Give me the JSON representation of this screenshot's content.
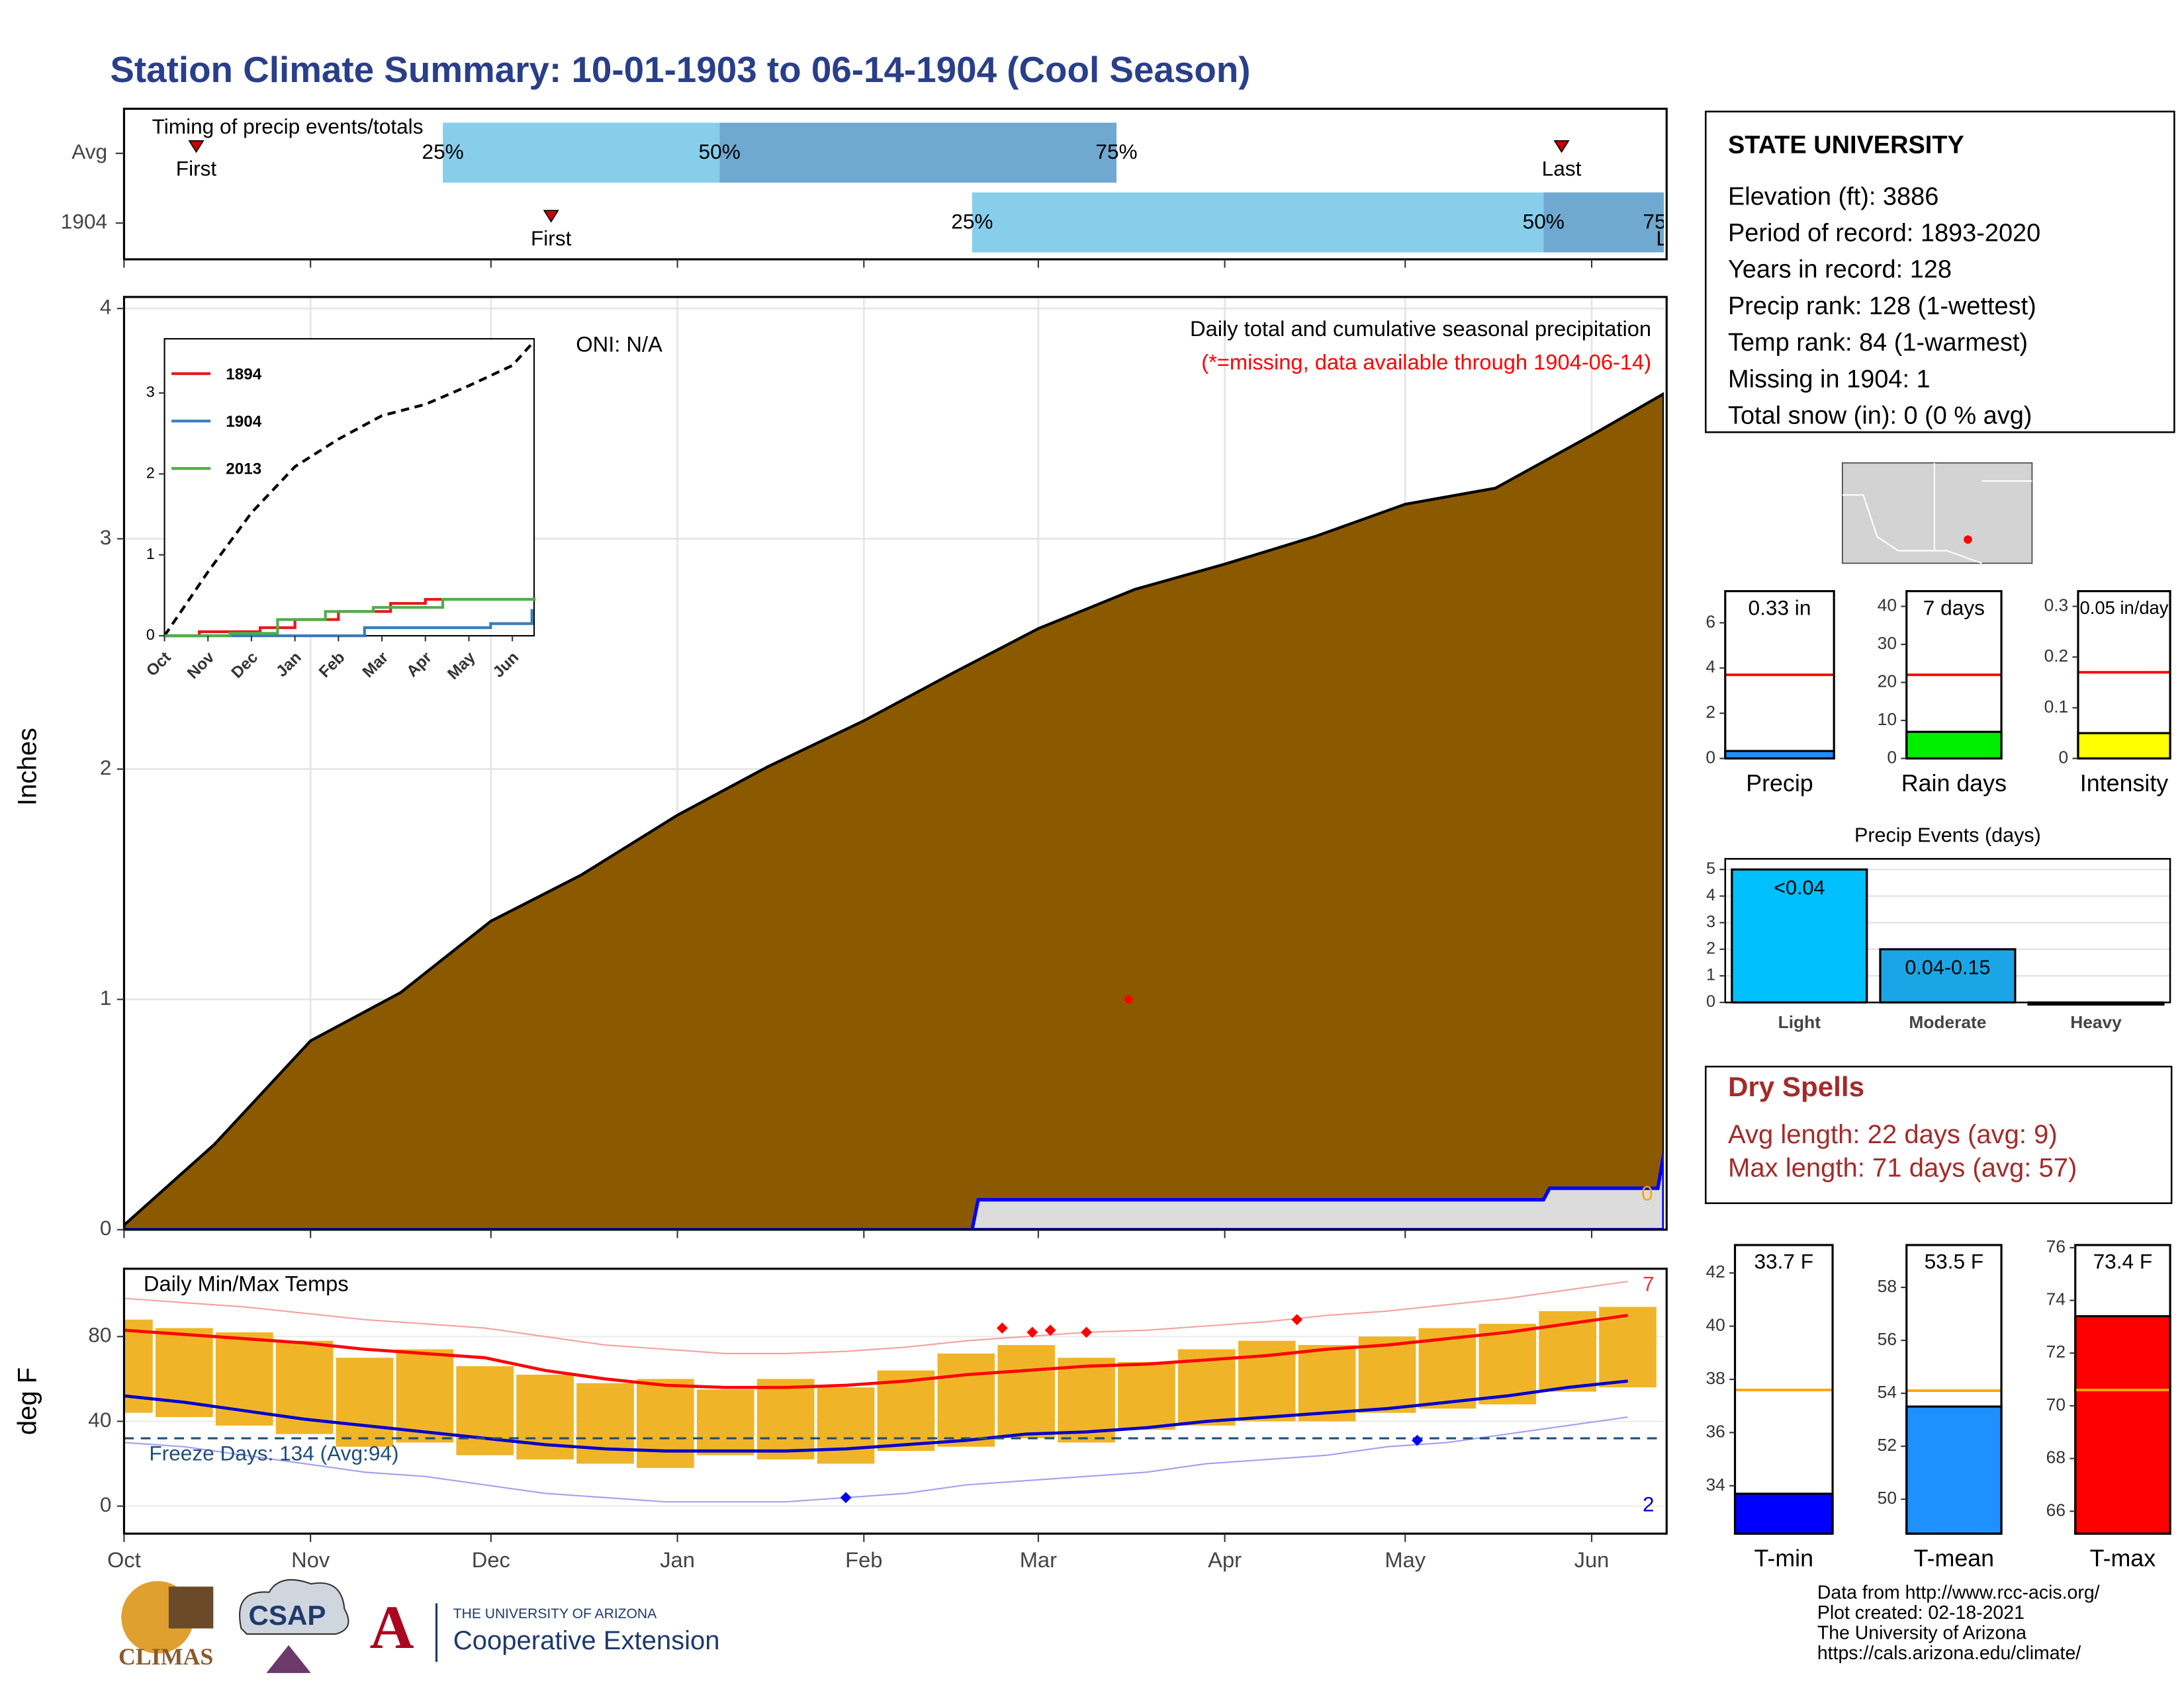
{
  "title": "Station Climate Summary: 10-01-1903 to 06-14-1904 (Cool Season)",
  "station": {
    "name": "STATE UNIVERSITY",
    "lines": [
      "Elevation (ft): 3886",
      "Period of record: 1893-2020",
      "Years in record: 128",
      "Precip rank: 128 (1-wettest)",
      "Temp rank: 84 (1-warmest)",
      "Missing in 1904: 1",
      "Total snow (in): 0 (0 % avg)"
    ]
  },
  "dry_spells": {
    "title": "Dry Spells",
    "lines": [
      "Avg length: 22 days (avg: 9)",
      "Max length: 71 days (avg: 57)"
    ]
  },
  "credits": [
    "Data from http://www.rcc-acis.org/",
    "Plot created: 02-18-2021",
    "The University of Arizona",
    "https://cals.arizona.edu/climate/"
  ],
  "logos": [
    "CLIMAS",
    "CSAP",
    "THE UNIVERSITY OF ARIZONA",
    "Cooperative Extension"
  ],
  "chart_data": [
    {
      "type": "timing",
      "title": "Timing of precip events/totals",
      "categories": [
        "Avg",
        "1904"
      ],
      "marker_labels": {
        "first": "First",
        "last": "Last",
        "q25": "25%",
        "q50": "50%",
        "q75": "75%"
      },
      "first": [
        12,
        71
      ],
      "last": [
        239,
        258
      ],
      "q25": [
        53,
        141
      ],
      "q50": [
        99,
        236
      ],
      "q75": [
        165,
        256
      ],
      "xlim": [
        0,
        256
      ],
      "colors": [
        "#87ceeb",
        "#6fa8d0"
      ]
    },
    {
      "type": "area",
      "title": "Daily total and cumulative seasonal precipitation",
      "note": "(*=missing, data available through 1904-06-14)",
      "annotation": "ONI: N/A",
      "ylabel": "Inches",
      "right_label": "0",
      "x": [
        0,
        15,
        31,
        46,
        61,
        76,
        92,
        107,
        123,
        138,
        152,
        168,
        183,
        198,
        213,
        228,
        244,
        256
      ],
      "values": [
        0.02,
        0.37,
        0.82,
        1.03,
        1.34,
        1.54,
        1.8,
        2.01,
        2.21,
        2.42,
        2.61,
        2.78,
        2.89,
        3.01,
        3.15,
        3.22,
        3.45,
        3.63
      ],
      "color": "#8b5a00",
      "series": [
        {
          "color": "#0000ff",
          "x": [
            0,
            141,
            142,
            236,
            237,
            255,
            256
          ],
          "values": [
            0,
            0,
            0.13,
            0.13,
            0.18,
            0.18,
            0.33
          ]
        }
      ],
      "missing": {
        "x": 167,
        "y": 1
      },
      "xlim": [
        0,
        256
      ],
      "ylim": [
        0,
        4.05
      ],
      "yticks": [
        0,
        1,
        2,
        3,
        4
      ],
      "grid": true
    },
    {
      "type": "line",
      "xlim": [
        0,
        8.5
      ],
      "ylim": [
        0,
        3.67
      ],
      "yticks": [
        0,
        1,
        2,
        3
      ],
      "xticks": [
        {
          "value": 0,
          "label": "Oct"
        },
        {
          "value": 1,
          "label": "Nov"
        },
        {
          "value": 2,
          "label": "Dec"
        },
        {
          "value": 3,
          "label": "Jan"
        },
        {
          "value": 4,
          "label": "Feb"
        },
        {
          "value": 5,
          "label": "Mar"
        },
        {
          "value": 6,
          "label": "Apr"
        },
        {
          "value": 7,
          "label": "May"
        },
        {
          "value": 8,
          "label": "Jun"
        }
      ],
      "series": [
        {
          "color": "#000000",
          "dash": true,
          "x": [
            0,
            1,
            2,
            3,
            4,
            5,
            6,
            7,
            8,
            8.5
          ],
          "values": [
            0,
            0.79,
            1.52,
            2.09,
            2.43,
            2.72,
            2.86,
            3.09,
            3.34,
            3.64
          ]
        },
        {
          "name": "1894",
          "color": "#e41a1c",
          "step": true,
          "x": [
            0,
            0.8,
            2.2,
            3,
            4,
            5.2,
            6,
            8.5
          ],
          "values": [
            0,
            0.05,
            0.1,
            0.2,
            0.3,
            0.4,
            0.45,
            0.47
          ]
        },
        {
          "name": "1904",
          "color": "#377eb8",
          "step": true,
          "x": [
            0,
            4.6,
            7.5,
            8.45
          ],
          "values": [
            0,
            0.1,
            0.15,
            0.33
          ]
        },
        {
          "name": "2013",
          "color": "#4daf4a",
          "step": true,
          "x": [
            0,
            1.5,
            2.6,
            3.7,
            4.8,
            6.4,
            8.5
          ],
          "values": [
            0,
            0.03,
            0.2,
            0.3,
            0.35,
            0.45,
            0.47
          ]
        }
      ]
    },
    {
      "type": "temps",
      "title": "Daily Min/Max Temps",
      "ylabel": "deg F",
      "freeze": 32,
      "freeze_label": "Freeze Days: 134 (Avg:94)",
      "corner_labels": [
        "7",
        "2"
      ],
      "xlim": [
        0,
        256
      ],
      "ylim": [
        -13,
        112
      ],
      "yticks": [
        0,
        40,
        80
      ],
      "xticks": [
        {
          "value": 0,
          "label": "Oct"
        },
        {
          "value": 31,
          "label": "Nov"
        },
        {
          "value": 61,
          "label": "Dec"
        },
        {
          "value": 92,
          "label": "Jan"
        },
        {
          "value": 123,
          "label": "Feb"
        },
        {
          "value": 152,
          "label": "Mar"
        },
        {
          "value": 183,
          "label": "Apr"
        },
        {
          "value": 213,
          "label": "May"
        },
        {
          "value": 244,
          "label": "Jun"
        }
      ],
      "x": [
        0,
        10,
        20,
        30,
        40,
        50,
        60,
        70,
        80,
        90,
        100,
        110,
        120,
        130,
        140,
        150,
        160,
        170,
        180,
        190,
        200,
        210,
        220,
        230,
        240,
        250
      ],
      "max": [
        88,
        84,
        82,
        78,
        70,
        74,
        66,
        62,
        58,
        60,
        55,
        60,
        56,
        64,
        72,
        76,
        70,
        68,
        74,
        78,
        76,
        80,
        84,
        86,
        92,
        94
      ],
      "min": [
        44,
        42,
        38,
        34,
        28,
        30,
        24,
        22,
        20,
        18,
        24,
        22,
        20,
        26,
        28,
        32,
        30,
        36,
        38,
        40,
        40,
        44,
        46,
        48,
        54,
        56
      ],
      "avg_max": [
        83,
        81,
        79,
        77,
        74,
        72,
        70,
        64,
        60,
        57,
        56,
        56,
        57,
        59,
        62,
        64,
        66,
        67,
        69,
        71,
        74,
        76,
        79,
        82,
        86,
        90
      ],
      "avg_min": [
        52,
        49,
        45,
        41,
        38,
        35,
        32,
        29,
        27,
        26,
        26,
        26,
        27,
        29,
        31,
        34,
        35,
        37,
        40,
        42,
        44,
        46,
        49,
        52,
        56,
        59
      ],
      "record_max": [
        98,
        96,
        94,
        91,
        88,
        86,
        84,
        80,
        76,
        74,
        72,
        72,
        73,
        75,
        78,
        80,
        82,
        83,
        85,
        87,
        90,
        92,
        95,
        98,
        102,
        106
      ],
      "record_min": [
        30,
        28,
        24,
        20,
        16,
        14,
        10,
        6,
        4,
        2,
        2,
        2,
        4,
        6,
        10,
        12,
        14,
        16,
        20,
        22,
        24,
        28,
        30,
        34,
        38,
        42
      ],
      "record_highs": {
        "x": [
          146,
          151,
          154,
          160,
          195
        ],
        "y": [
          84,
          82,
          83,
          82,
          88
        ]
      },
      "record_lows": {
        "x": [
          120,
          215
        ],
        "y": [
          4,
          31
        ]
      }
    },
    {
      "type": "bar",
      "categories": [
        "Precip"
      ],
      "values": [
        0.33
      ],
      "value_labels": [
        "0.33 in"
      ],
      "color": "#1e90ff",
      "reference": 3.7,
      "reference_color": "#ff0000",
      "ylim": [
        0,
        7.4
      ],
      "yticks": [
        0,
        2,
        4,
        6
      ]
    },
    {
      "type": "bar",
      "categories": [
        "Rain days"
      ],
      "values": [
        7
      ],
      "value_labels": [
        "7 days"
      ],
      "color": "#00ee00",
      "reference": 22,
      "reference_color": "#ff0000",
      "ylim": [
        0,
        44
      ],
      "yticks": [
        0,
        10,
        20,
        30,
        40
      ]
    },
    {
      "type": "bar",
      "categories": [
        "Intensity"
      ],
      "values": [
        0.05
      ],
      "value_labels": [
        "0.05 in/day"
      ],
      "color": "#ffff00",
      "reference": 0.17,
      "reference_color": "#ff0000",
      "ylim": [
        0,
        0.33
      ],
      "yticks": [
        0,
        0.1,
        0.2,
        0.3
      ]
    },
    {
      "type": "events",
      "title": "Precip Events (days)",
      "categories": [
        "Light",
        "Moderate",
        "Heavy"
      ],
      "values": [
        5,
        2,
        0
      ],
      "value_labels": [
        "<0.04",
        "0.04-0.15",
        null
      ],
      "colors": [
        "#00bfff",
        "#1aa6e6",
        "#1aa6e6"
      ],
      "ylim": [
        0,
        5.4
      ],
      "yticks": [
        0,
        1,
        2,
        3,
        4,
        5
      ],
      "grid": true
    },
    {
      "type": "bar",
      "categories": [
        "T-min"
      ],
      "values": [
        33.7
      ],
      "value_labels": [
        "33.7 F"
      ],
      "color": "#0000ff",
      "reference": 37.6,
      "reference_color": "#ffa500",
      "ylim": [
        32.2,
        43.05
      ],
      "yticks": [
        34,
        36,
        38,
        40,
        42
      ]
    },
    {
      "type": "bar",
      "categories": [
        "T-mean"
      ],
      "values": [
        53.5
      ],
      "value_labels": [
        "53.5 F"
      ],
      "color": "#1e90ff",
      "reference": 54.1,
      "reference_color": "#ffa500",
      "ylim": [
        48.7,
        59.6
      ],
      "yticks": [
        50,
        52,
        54,
        56,
        58
      ]
    },
    {
      "type": "bar",
      "categories": [
        "T-max"
      ],
      "values": [
        73.4
      ],
      "value_labels": [
        "73.4 F"
      ],
      "color": "#ff0000",
      "reference": 70.6,
      "reference_color": "#ffa500",
      "ylim": [
        65.15,
        76.1
      ],
      "yticks": [
        66,
        68,
        70,
        72,
        74,
        76
      ]
    }
  ]
}
